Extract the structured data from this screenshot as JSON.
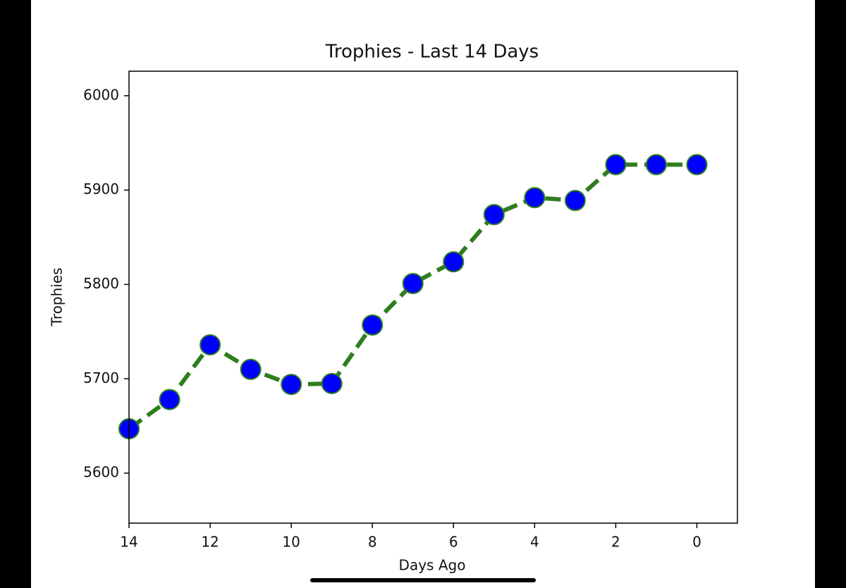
{
  "chart_data": {
    "type": "line",
    "title": "Trophies - Last 14 Days",
    "x_label": "Days Ago",
    "y_label": "Trophies",
    "x": [
      14,
      13,
      12,
      11,
      10,
      9,
      8,
      7,
      6,
      5,
      4,
      3,
      2,
      1,
      0
    ],
    "series": [
      {
        "color": "#2e7d1e",
        "marker_color": "#0000ff",
        "values": [
          5647,
          5678,
          5736,
          5710,
          5694,
          5695,
          5757,
          5801,
          5824,
          5874,
          5892,
          5889,
          5927,
          5927,
          5927
        ]
      }
    ],
    "xlim": [
      14,
      -1
    ],
    "xticks": [
      14,
      12,
      10,
      8,
      6,
      4,
      2,
      0
    ],
    "ylim": [
      5547,
      6026
    ],
    "yticks": [
      5600,
      5700,
      5800,
      5900,
      6000
    ]
  }
}
